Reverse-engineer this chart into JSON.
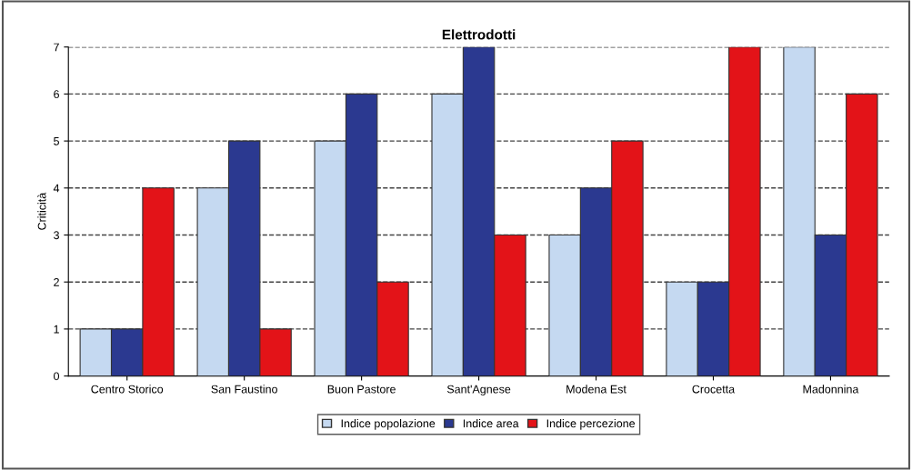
{
  "chart_data": {
    "type": "bar",
    "title": "Elettrodotti",
    "ylabel": "Criticità",
    "categories": [
      "Centro Storico",
      "San Faustino",
      "Buon Pastore",
      "Sant'Agnese",
      "Modena Est",
      "Crocetta",
      "Madonnina"
    ],
    "series": [
      {
        "name": "Indice popolazione",
        "color": "#c5d9f1",
        "values": [
          1,
          4,
          5,
          6,
          3,
          2,
          7
        ]
      },
      {
        "name": "Indice area",
        "color": "#2b3990",
        "values": [
          1,
          5,
          6,
          7,
          4,
          2,
          3
        ]
      },
      {
        "name": "Indice percezione",
        "color": "#e31318",
        "values": [
          4,
          1,
          2,
          3,
          5,
          7,
          6
        ]
      }
    ],
    "ylim": [
      0,
      7
    ],
    "yticks": [
      0,
      1,
      2,
      3,
      4,
      5,
      6,
      7
    ],
    "grid": "y",
    "legend": "bottom"
  }
}
